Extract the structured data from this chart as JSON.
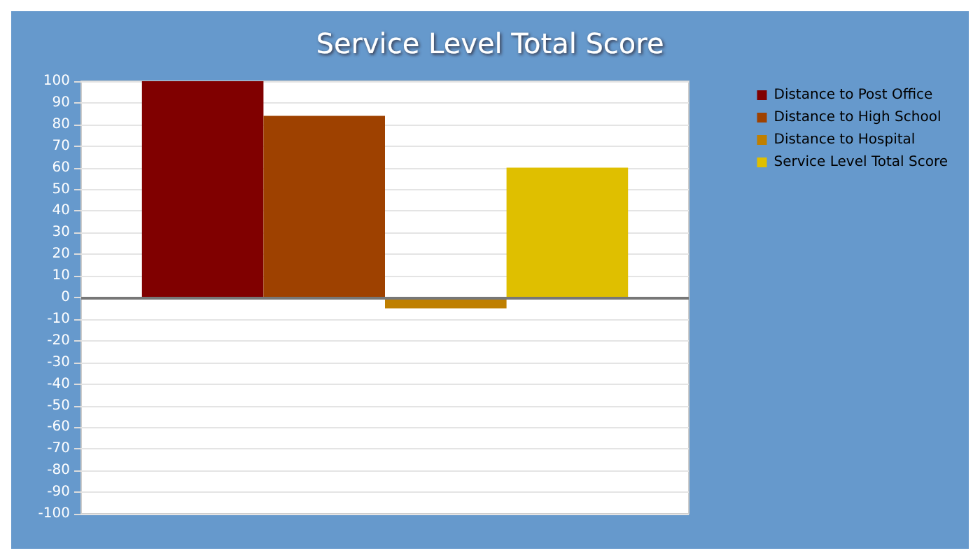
{
  "chart_data": {
    "type": "bar",
    "title": "Service Level Total Score",
    "categories": [
      null
    ],
    "series": [
      {
        "name": "Distance to Post Office",
        "color": "#800000",
        "values": [
          100
        ]
      },
      {
        "name": "Distance to High School",
        "color": "#9e4100",
        "values": [
          84
        ]
      },
      {
        "name": "Distance to Hospital",
        "color": "#bf7f00",
        "values": [
          -5
        ]
      },
      {
        "name": "Service Level Total Score",
        "color": "#dfbf00",
        "values": [
          60
        ]
      }
    ],
    "ylim": [
      -100,
      100
    ],
    "yticks": [
      -100,
      -90,
      -80,
      -70,
      -60,
      -50,
      -40,
      -30,
      -20,
      -10,
      0,
      10,
      20,
      30,
      40,
      50,
      60,
      70,
      80,
      90,
      100
    ],
    "grid": "y",
    "legend": "top right"
  }
}
